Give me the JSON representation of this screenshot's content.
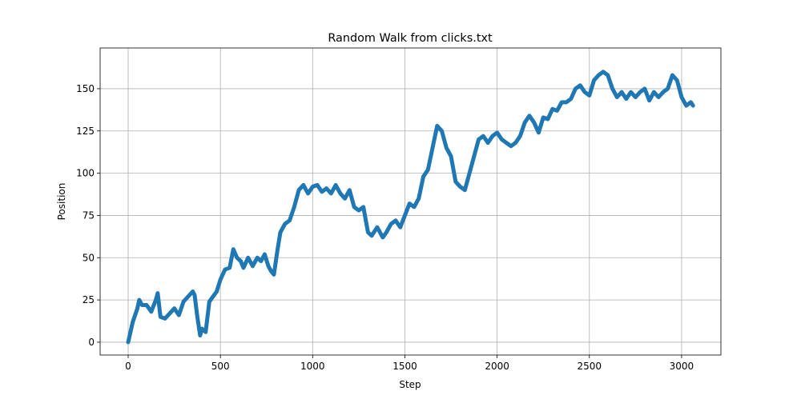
{
  "chart_data": {
    "type": "line",
    "title": "Random Walk from clicks.txt",
    "x_label": "Step",
    "y_label": "Position",
    "x": [
      0,
      25,
      50,
      60,
      75,
      100,
      125,
      150,
      160,
      175,
      200,
      225,
      250,
      275,
      300,
      325,
      350,
      360,
      375,
      390,
      400,
      420,
      440,
      460,
      480,
      500,
      525,
      550,
      570,
      590,
      610,
      625,
      650,
      675,
      700,
      720,
      740,
      760,
      775,
      790,
      810,
      825,
      850,
      875,
      900,
      925,
      950,
      975,
      1000,
      1025,
      1050,
      1075,
      1100,
      1125,
      1150,
      1175,
      1200,
      1225,
      1250,
      1275,
      1300,
      1320,
      1350,
      1380,
      1400,
      1425,
      1450,
      1475,
      1500,
      1525,
      1550,
      1575,
      1600,
      1625,
      1650,
      1675,
      1700,
      1725,
      1750,
      1775,
      1800,
      1825,
      1850,
      1875,
      1900,
      1925,
      1950,
      1975,
      2000,
      2025,
      2050,
      2075,
      2100,
      2125,
      2150,
      2175,
      2200,
      2225,
      2250,
      2275,
      2300,
      2325,
      2350,
      2375,
      2400,
      2425,
      2450,
      2475,
      2500,
      2525,
      2550,
      2575,
      2600,
      2625,
      2650,
      2675,
      2700,
      2725,
      2750,
      2775,
      2800,
      2825,
      2850,
      2875,
      2900,
      2925,
      2950,
      2975,
      3000,
      3025,
      3050,
      3062
    ],
    "series": [
      {
        "name": "Position",
        "color": "#1f77b4",
        "values": [
          0,
          12,
          20,
          25,
          22,
          22,
          18,
          25,
          29,
          15,
          14,
          17,
          20,
          16,
          24,
          27,
          30,
          28,
          15,
          4,
          8,
          6,
          24,
          27,
          30,
          37,
          43,
          44,
          55,
          50,
          48,
          44,
          50,
          45,
          50,
          48,
          52,
          45,
          42,
          40,
          55,
          65,
          70,
          72,
          80,
          90,
          93,
          88,
          92,
          93,
          89,
          91,
          88,
          93,
          88,
          85,
          90,
          80,
          78,
          80,
          65,
          63,
          68,
          62,
          65,
          70,
          72,
          68,
          75,
          82,
          80,
          85,
          98,
          102,
          115,
          128,
          125,
          115,
          110,
          95,
          92,
          90,
          100,
          110,
          120,
          122,
          118,
          122,
          124,
          120,
          118,
          116,
          118,
          122,
          130,
          134,
          130,
          124,
          133,
          132,
          138,
          137,
          142,
          142,
          144,
          150,
          152,
          148,
          146,
          155,
          158,
          160,
          158,
          150,
          145,
          148,
          144,
          148,
          145,
          148,
          150,
          143,
          148,
          145,
          148,
          150,
          158,
          155,
          145,
          140,
          142,
          140
        ]
      }
    ],
    "xlim": [
      -152,
      3213
    ],
    "ylim": [
      -7.6,
      174.1
    ],
    "xticks": [
      0,
      500,
      1000,
      1500,
      2000,
      2500,
      3000
    ],
    "yticks": [
      0,
      25,
      50,
      75,
      100,
      125,
      150
    ],
    "grid": true
  }
}
